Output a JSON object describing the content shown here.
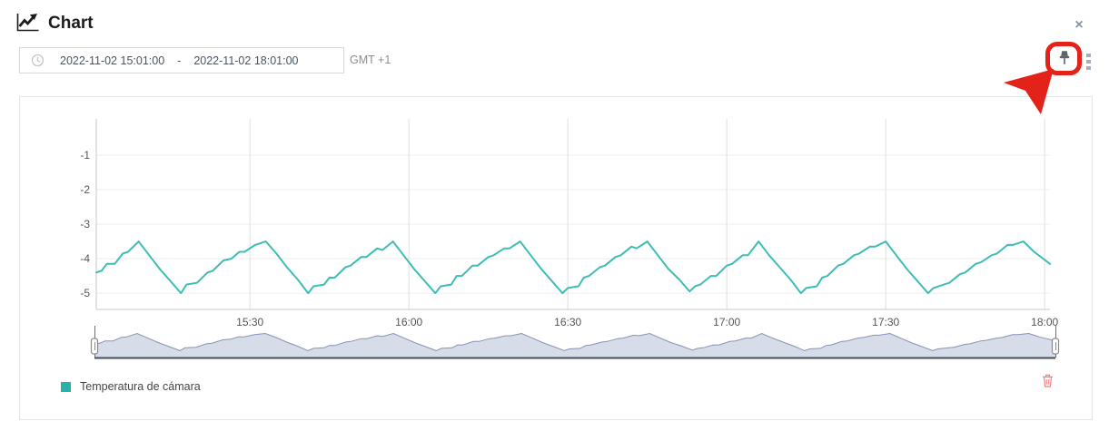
{
  "header": {
    "title": "Chart",
    "close_glyph": "×"
  },
  "toolbar": {
    "range_start": "2022-11-02 15:01:00",
    "range_separator": "-",
    "range_end": "2022-11-02 18:01:00",
    "timezone": "GMT +1"
  },
  "annotation": {
    "color": "#e3231a",
    "target": "pin-button"
  },
  "legend": {
    "items": [
      {
        "label": "Temperatura de cámara",
        "color": "#26b3aa"
      }
    ]
  },
  "chart_data": {
    "type": "line",
    "title": "",
    "xlabel": "",
    "ylabel": "",
    "x_unit": "minutes after 15:00",
    "x_range_minutes": [
      1,
      181
    ],
    "ylim": [
      -5.47,
      0.05
    ],
    "grid": true,
    "legend_position": "bottom-left",
    "y_ticks": [
      -1,
      -2,
      -3,
      -4,
      -5
    ],
    "x_ticks": [
      {
        "minute": 30,
        "label": "15:30"
      },
      {
        "minute": 60,
        "label": "16:00"
      },
      {
        "minute": 90,
        "label": "16:30"
      },
      {
        "minute": 120,
        "label": "17:00"
      },
      {
        "minute": 150,
        "label": "17:30"
      },
      {
        "minute": 180,
        "label": "18:00"
      }
    ],
    "series": [
      {
        "name": "Temperatura de cámara",
        "color": "#3dbdb5",
        "points": [
          [
            1,
            -4.4
          ],
          [
            2,
            -4.35
          ],
          [
            3,
            -4.15
          ],
          [
            4.5,
            -4.15
          ],
          [
            6,
            -3.85
          ],
          [
            7,
            -3.8
          ],
          [
            9,
            -3.5
          ],
          [
            11,
            -3.9
          ],
          [
            13,
            -4.3
          ],
          [
            15,
            -4.65
          ],
          [
            17,
            -5
          ],
          [
            18,
            -4.75
          ],
          [
            20,
            -4.7
          ],
          [
            22,
            -4.4
          ],
          [
            23,
            -4.35
          ],
          [
            25,
            -4.05
          ],
          [
            26.5,
            -4
          ],
          [
            28,
            -3.8
          ],
          [
            29,
            -3.8
          ],
          [
            31,
            -3.6
          ],
          [
            33,
            -3.5
          ],
          [
            35,
            -3.85
          ],
          [
            37,
            -4.25
          ],
          [
            39,
            -4.6
          ],
          [
            41,
            -5
          ],
          [
            42,
            -4.8
          ],
          [
            44,
            -4.75
          ],
          [
            45,
            -4.55
          ],
          [
            46,
            -4.55
          ],
          [
            48,
            -4.25
          ],
          [
            49,
            -4.2
          ],
          [
            51,
            -3.95
          ],
          [
            52,
            -3.95
          ],
          [
            54,
            -3.7
          ],
          [
            55,
            -3.75
          ],
          [
            57,
            -3.5
          ],
          [
            59,
            -3.9
          ],
          [
            61,
            -4.3
          ],
          [
            63,
            -4.65
          ],
          [
            65,
            -5
          ],
          [
            66,
            -4.8
          ],
          [
            68,
            -4.75
          ],
          [
            69,
            -4.5
          ],
          [
            70,
            -4.5
          ],
          [
            72,
            -4.2
          ],
          [
            73,
            -4.2
          ],
          [
            75,
            -3.95
          ],
          [
            76,
            -3.9
          ],
          [
            78,
            -3.7
          ],
          [
            79,
            -3.7
          ],
          [
            81,
            -3.5
          ],
          [
            83,
            -3.9
          ],
          [
            85,
            -4.3
          ],
          [
            87,
            -4.65
          ],
          [
            89,
            -5
          ],
          [
            90,
            -4.85
          ],
          [
            92,
            -4.8
          ],
          [
            93,
            -4.55
          ],
          [
            94,
            -4.5
          ],
          [
            96,
            -4.25
          ],
          [
            97,
            -4.2
          ],
          [
            99,
            -3.95
          ],
          [
            100,
            -3.9
          ],
          [
            102,
            -3.65
          ],
          [
            103,
            -3.7
          ],
          [
            105,
            -3.5
          ],
          [
            107,
            -3.9
          ],
          [
            109,
            -4.3
          ],
          [
            111,
            -4.6
          ],
          [
            113,
            -4.95
          ],
          [
            114,
            -4.8
          ],
          [
            115,
            -4.75
          ],
          [
            117,
            -4.5
          ],
          [
            118,
            -4.5
          ],
          [
            120,
            -4.2
          ],
          [
            121,
            -4.15
          ],
          [
            123,
            -3.9
          ],
          [
            124,
            -3.9
          ],
          [
            126,
            -3.5
          ],
          [
            128,
            -3.9
          ],
          [
            130,
            -4.25
          ],
          [
            132,
            -4.6
          ],
          [
            134,
            -5
          ],
          [
            135,
            -4.85
          ],
          [
            137,
            -4.8
          ],
          [
            138,
            -4.55
          ],
          [
            139,
            -4.5
          ],
          [
            141,
            -4.2
          ],
          [
            142,
            -4.15
          ],
          [
            144,
            -3.9
          ],
          [
            145,
            -3.85
          ],
          [
            147,
            -3.65
          ],
          [
            148,
            -3.65
          ],
          [
            150,
            -3.5
          ],
          [
            152,
            -3.9
          ],
          [
            154,
            -4.3
          ],
          [
            156,
            -4.65
          ],
          [
            158,
            -5
          ],
          [
            159,
            -4.85
          ],
          [
            161,
            -4.75
          ],
          [
            162,
            -4.7
          ],
          [
            164,
            -4.45
          ],
          [
            165,
            -4.4
          ],
          [
            167,
            -4.15
          ],
          [
            168,
            -4.1
          ],
          [
            170,
            -3.9
          ],
          [
            171,
            -3.85
          ],
          [
            173,
            -3.6
          ],
          [
            174,
            -3.6
          ],
          [
            176,
            -3.5
          ],
          [
            178,
            -3.8
          ],
          [
            181,
            -4.15
          ]
        ]
      }
    ],
    "navigator": {
      "enabled": true,
      "fill": "#b6c1d6",
      "stroke": "#8793b4",
      "baseline_color": "#454c59",
      "selection": "full-range"
    }
  }
}
